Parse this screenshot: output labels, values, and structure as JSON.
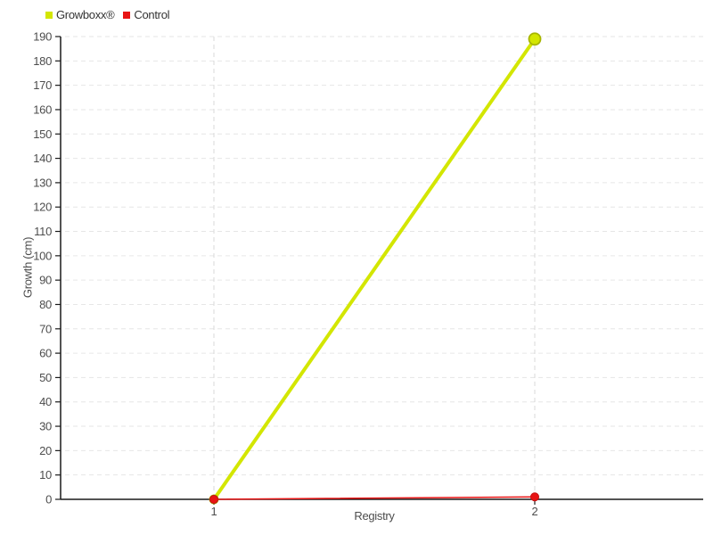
{
  "chart_data": {
    "type": "line",
    "title": "",
    "xlabel": "Registry",
    "ylabel": "Growth (cm)",
    "x": [
      1,
      2
    ],
    "x_tick_labels": [
      "1",
      "2"
    ],
    "series": [
      {
        "name": "Growboxx®",
        "color": "#d3e600",
        "marker_stroke": "#a7b500",
        "line_width": 4,
        "values": [
          0,
          189
        ]
      },
      {
        "name": "Control",
        "color": "#e81414",
        "marker_stroke": "#c51010",
        "line_width": 1.5,
        "values": [
          0,
          1
        ]
      }
    ],
    "ylim": [
      0,
      190
    ],
    "y_tick_step": 10,
    "y_ticks": [
      0,
      10,
      20,
      30,
      40,
      50,
      60,
      70,
      80,
      90,
      100,
      110,
      120,
      130,
      140,
      150,
      160,
      170,
      180,
      190
    ],
    "grid": true,
    "legend_position": "top-left",
    "axis_color": "#1a1a1a",
    "grid_color": "#e6e6e6",
    "vgrid_color": "#d9d9d9",
    "tick_label_color": "#4d4d4d"
  }
}
